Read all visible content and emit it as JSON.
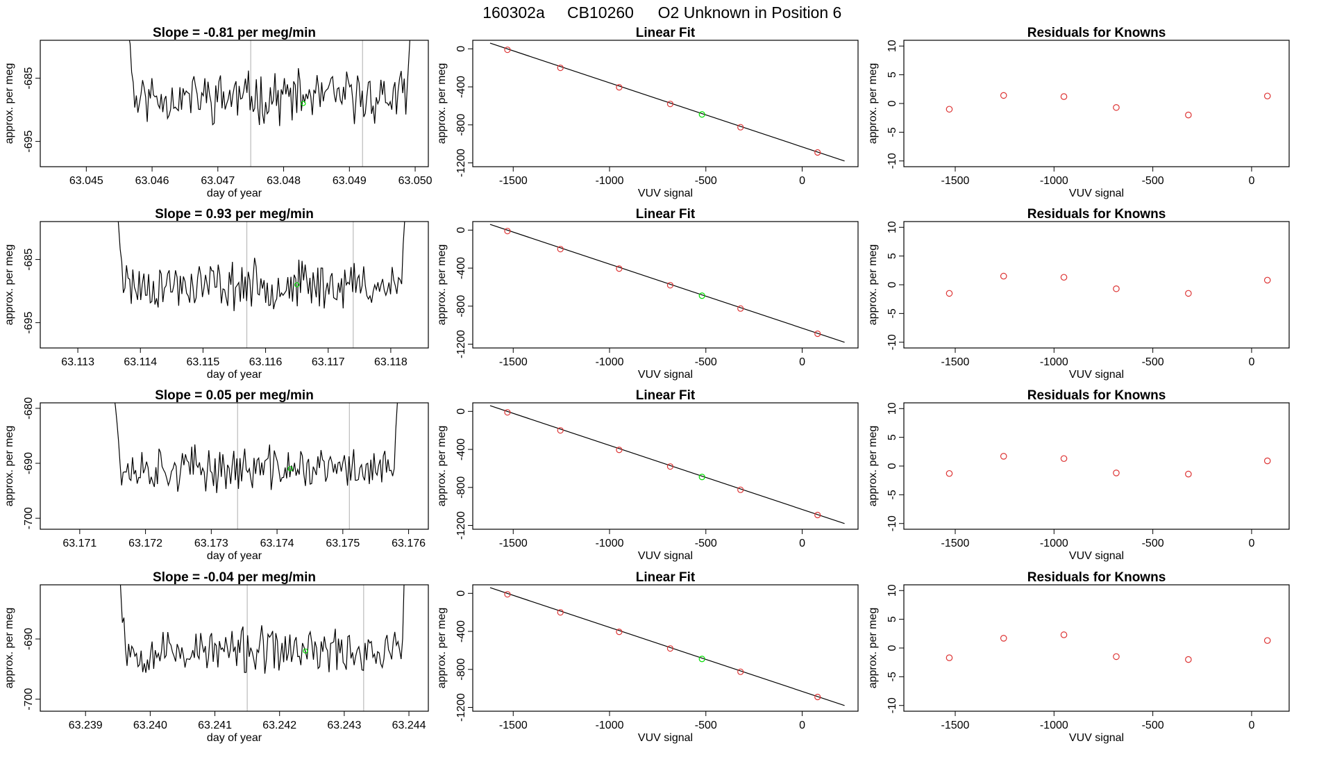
{
  "header": {
    "date": "160302a",
    "cylinder": "CB10260",
    "title": "O2 Unknown in Position  6"
  },
  "colors": {
    "trace": "#000000",
    "marker": "#00dd00",
    "known": "#dd3333",
    "vline": "#bbbbbb",
    "fit": "#000000"
  },
  "chart_data": [
    {
      "type": "line",
      "panel": "trace",
      "row": 1,
      "title": "Slope =  -0.81  per meg/min",
      "xlabel": "day of year",
      "ylabel": "approx. per meg",
      "xlim": [
        63.0443,
        63.0502
      ],
      "ylim": [
        -699,
        -679
      ],
      "xticks": [
        63.045,
        63.046,
        63.047,
        63.048,
        63.049,
        63.05
      ],
      "xtick_labels": [
        "63.045",
        "63.046",
        "63.047",
        "63.048",
        "63.049",
        "63.050"
      ],
      "yticks": [
        -685,
        -695
      ],
      "ytick_labels": [
        "-685",
        "-695"
      ],
      "x_start": 63.0455,
      "x_end": 63.05,
      "baseline": -688,
      "noise": 3.2,
      "vlines": [
        63.0475,
        63.0492
      ],
      "marker": {
        "x": 63.0483,
        "y": -689
      },
      "seed": 11
    },
    {
      "type": "scatter",
      "panel": "fit",
      "row": 1,
      "title": "Linear Fit",
      "xlabel": "VUV signal",
      "ylabel": "approx. per meg",
      "xlim": [
        -1710,
        290
      ],
      "ylim": [
        -1240,
        90
      ],
      "xticks": [
        -1500,
        -1000,
        -500,
        0
      ],
      "xtick_labels": [
        "-1500",
        "-1000",
        "-500",
        "0"
      ],
      "yticks": [
        0,
        -400,
        -800,
        -1200
      ],
      "ytick_labels": [
        "0",
        "-400",
        "-800",
        "-1200"
      ],
      "fit_line": {
        "x": [
          -1620,
          220
        ],
        "y": [
          60,
          -1180
        ]
      },
      "knowns": [
        [
          -1530,
          -10
        ],
        [
          -1255,
          -200
        ],
        [
          -950,
          -405
        ],
        [
          -685,
          -580
        ],
        [
          -320,
          -825
        ],
        [
          80,
          -1090
        ]
      ],
      "unknown": [
        -520,
        -690
      ]
    },
    {
      "type": "scatter",
      "panel": "residuals",
      "row": 1,
      "title": "Residuals for Knowns",
      "xlabel": "VUV signal",
      "ylabel": "approx. per meg",
      "xlim": [
        -1760,
        190
      ],
      "ylim": [
        -11,
        11
      ],
      "xticks": [
        -1500,
        -1000,
        -500,
        0
      ],
      "xtick_labels": [
        "-1500",
        "-1000",
        "-500",
        "0"
      ],
      "yticks": [
        10,
        5,
        0,
        -5,
        -10
      ],
      "ytick_labels": [
        "10",
        "5",
        "0",
        "-5",
        "-10"
      ],
      "points": [
        [
          -1530,
          -1.0
        ],
        [
          -1255,
          1.4
        ],
        [
          -950,
          1.2
        ],
        [
          -685,
          -0.7
        ],
        [
          -320,
          -2.0
        ],
        [
          80,
          1.3
        ]
      ]
    },
    {
      "type": "line",
      "panel": "trace",
      "row": 2,
      "title": "Slope =  0.93  per meg/min",
      "xlabel": "day of year",
      "ylabel": "approx. per meg",
      "xlim": [
        63.1124,
        63.1186
      ],
      "ylim": [
        -699,
        -679
      ],
      "xticks": [
        63.113,
        63.114,
        63.115,
        63.116,
        63.117,
        63.118
      ],
      "xtick_labels": [
        "63.113",
        "63.114",
        "63.115",
        "63.116",
        "63.117",
        "63.118"
      ],
      "yticks": [
        -685,
        -695
      ],
      "ytick_labels": [
        "-685",
        "-695"
      ],
      "x_start": 63.1135,
      "x_end": 63.1183,
      "baseline": -689,
      "noise": 3.0,
      "vlines": [
        63.1157,
        63.1174
      ],
      "marker": {
        "x": 63.1165,
        "y": -689
      },
      "seed": 23
    },
    {
      "type": "scatter",
      "panel": "fit",
      "row": 2,
      "title": "Linear Fit",
      "xlabel": "VUV signal",
      "ylabel": "approx. per meg",
      "xlim": [
        -1710,
        290
      ],
      "ylim": [
        -1240,
        90
      ],
      "xticks": [
        -1500,
        -1000,
        -500,
        0
      ],
      "xtick_labels": [
        "-1500",
        "-1000",
        "-500",
        "0"
      ],
      "yticks": [
        0,
        -400,
        -800,
        -1200
      ],
      "ytick_labels": [
        "0",
        "-400",
        "-800",
        "-1200"
      ],
      "fit_line": {
        "x": [
          -1620,
          220
        ],
        "y": [
          60,
          -1180
        ]
      },
      "knowns": [
        [
          -1530,
          -10
        ],
        [
          -1255,
          -200
        ],
        [
          -950,
          -405
        ],
        [
          -685,
          -580
        ],
        [
          -320,
          -825
        ],
        [
          80,
          -1090
        ]
      ],
      "unknown": [
        -520,
        -690
      ]
    },
    {
      "type": "scatter",
      "panel": "residuals",
      "row": 2,
      "title": "Residuals for Knowns",
      "xlabel": "VUV signal",
      "ylabel": "approx. per meg",
      "xlim": [
        -1760,
        190
      ],
      "ylim": [
        -11,
        11
      ],
      "xticks": [
        -1500,
        -1000,
        -500,
        0
      ],
      "xtick_labels": [
        "-1500",
        "-1000",
        "-500",
        "0"
      ],
      "yticks": [
        10,
        5,
        0,
        -5,
        -10
      ],
      "ytick_labels": [
        "10",
        "5",
        "0",
        "-5",
        "-10"
      ],
      "points": [
        [
          -1530,
          -1.5
        ],
        [
          -1255,
          1.5
        ],
        [
          -950,
          1.3
        ],
        [
          -685,
          -0.7
        ],
        [
          -320,
          -1.5
        ],
        [
          80,
          0.8
        ]
      ]
    },
    {
      "type": "line",
      "panel": "trace",
      "row": 3,
      "title": "Slope =  0.05  per meg/min",
      "xlabel": "day of year",
      "ylabel": "approx. per meg",
      "xlim": [
        63.1704,
        63.1763
      ],
      "ylim": [
        -702,
        -679
      ],
      "xticks": [
        63.171,
        63.172,
        63.173,
        63.174,
        63.175,
        63.176
      ],
      "xtick_labels": [
        "63.171",
        "63.172",
        "63.173",
        "63.174",
        "63.175",
        "63.176"
      ],
      "yticks": [
        -680,
        -690,
        -700
      ],
      "ytick_labels": [
        "-680",
        "-690",
        "-700"
      ],
      "x_start": 63.1714,
      "x_end": 63.1759,
      "baseline": -691,
      "noise": 3.2,
      "vlines": [
        63.1734,
        63.1751
      ],
      "marker": {
        "x": 63.1742,
        "y": -691
      },
      "seed": 37
    },
    {
      "type": "scatter",
      "panel": "fit",
      "row": 3,
      "title": "Linear Fit",
      "xlabel": "VUV signal",
      "ylabel": "approx. per meg",
      "xlim": [
        -1710,
        290
      ],
      "ylim": [
        -1240,
        90
      ],
      "xticks": [
        -1500,
        -1000,
        -500,
        0
      ],
      "xtick_labels": [
        "-1500",
        "-1000",
        "-500",
        "0"
      ],
      "yticks": [
        0,
        -400,
        -800,
        -1200
      ],
      "ytick_labels": [
        "0",
        "-400",
        "-800",
        "-1200"
      ],
      "fit_line": {
        "x": [
          -1620,
          220
        ],
        "y": [
          60,
          -1180
        ]
      },
      "knowns": [
        [
          -1530,
          -10
        ],
        [
          -1255,
          -200
        ],
        [
          -950,
          -405
        ],
        [
          -685,
          -580
        ],
        [
          -320,
          -825
        ],
        [
          80,
          -1090
        ]
      ],
      "unknown": [
        -520,
        -690
      ]
    },
    {
      "type": "scatter",
      "panel": "residuals",
      "row": 3,
      "title": "Residuals for Knowns",
      "xlabel": "VUV signal",
      "ylabel": "approx. per meg",
      "xlim": [
        -1760,
        190
      ],
      "ylim": [
        -11,
        11
      ],
      "xticks": [
        -1500,
        -1000,
        -500,
        0
      ],
      "xtick_labels": [
        "-1500",
        "-1000",
        "-500",
        "0"
      ],
      "yticks": [
        10,
        5,
        0,
        -5,
        -10
      ],
      "ytick_labels": [
        "10",
        "5",
        "0",
        "-5",
        "-10"
      ],
      "points": [
        [
          -1530,
          -1.3
        ],
        [
          -1255,
          1.7
        ],
        [
          -950,
          1.3
        ],
        [
          -685,
          -1.2
        ],
        [
          -320,
          -1.4
        ],
        [
          80,
          0.9
        ]
      ]
    },
    {
      "type": "line",
      "panel": "trace",
      "row": 4,
      "title": "Slope =  -0.04  per meg/min",
      "xlabel": "day of year",
      "ylabel": "approx. per meg",
      "xlim": [
        63.2383,
        63.2443
      ],
      "ylim": [
        -702,
        -681
      ],
      "xticks": [
        63.239,
        63.24,
        63.241,
        63.242,
        63.243,
        63.244
      ],
      "xtick_labels": [
        "63.239",
        "63.240",
        "63.241",
        "63.242",
        "63.243",
        "63.244"
      ],
      "yticks": [
        -690,
        -700
      ],
      "ytick_labels": [
        "-690",
        "-700"
      ],
      "x_start": 63.2394,
      "x_end": 63.244,
      "baseline": -692,
      "noise": 3.0,
      "vlines": [
        63.2415,
        63.2433
      ],
      "marker": {
        "x": 63.2424,
        "y": -692
      },
      "seed": 53
    },
    {
      "type": "scatter",
      "panel": "fit",
      "row": 4,
      "title": "Linear Fit",
      "xlabel": "VUV signal",
      "ylabel": "approx. per meg",
      "xlim": [
        -1710,
        290
      ],
      "ylim": [
        -1240,
        90
      ],
      "xticks": [
        -1500,
        -1000,
        -500,
        0
      ],
      "xtick_labels": [
        "-1500",
        "-1000",
        "-500",
        "0"
      ],
      "yticks": [
        0,
        -400,
        -800,
        -1200
      ],
      "ytick_labels": [
        "0",
        "-400",
        "-800",
        "-1200"
      ],
      "fit_line": {
        "x": [
          -1620,
          220
        ],
        "y": [
          60,
          -1180
        ]
      },
      "knowns": [
        [
          -1530,
          -10
        ],
        [
          -1255,
          -200
        ],
        [
          -950,
          -405
        ],
        [
          -685,
          -580
        ],
        [
          -320,
          -825
        ],
        [
          80,
          -1090
        ]
      ],
      "unknown": [
        -520,
        -690
      ]
    },
    {
      "type": "scatter",
      "panel": "residuals",
      "row": 4,
      "title": "Residuals for Knowns",
      "xlabel": "VUV signal",
      "ylabel": "approx. per meg",
      "xlim": [
        -1760,
        190
      ],
      "ylim": [
        -11,
        11
      ],
      "xticks": [
        -1500,
        -1000,
        -500,
        0
      ],
      "xtick_labels": [
        "-1500",
        "-1000",
        "-500",
        "0"
      ],
      "yticks": [
        10,
        5,
        0,
        -5,
        -10
      ],
      "ytick_labels": [
        "10",
        "5",
        "0",
        "-5",
        "-10"
      ],
      "points": [
        [
          -1530,
          -1.7
        ],
        [
          -1255,
          1.7
        ],
        [
          -950,
          2.3
        ],
        [
          -685,
          -1.5
        ],
        [
          -320,
          -2.0
        ],
        [
          80,
          1.3
        ]
      ]
    }
  ]
}
